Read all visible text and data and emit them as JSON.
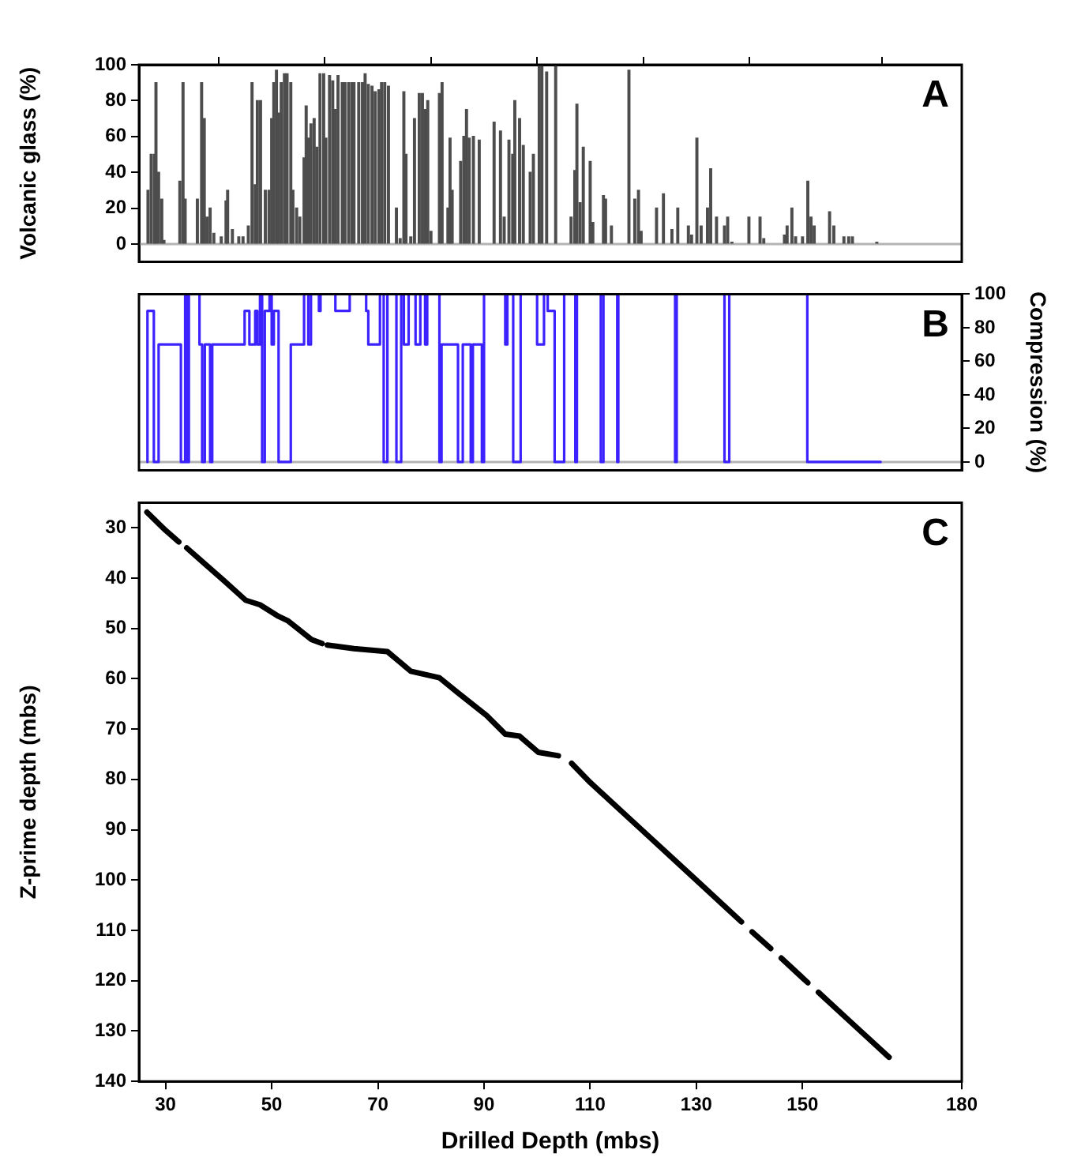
{
  "chart_data": [
    {
      "type": "bar",
      "ylabel": "Volcanic glass (%)",
      "xlim": [
        25,
        180
      ],
      "xticks": [
        30,
        50,
        70,
        90,
        110,
        130,
        150,
        180
      ],
      "ylim": [
        -10,
        100
      ],
      "yticks": [
        0,
        20,
        40,
        60,
        80,
        100
      ],
      "tick_labels": "y",
      "annotations": [
        "A"
      ],
      "ref_lines": [
        {
          "axis": "y",
          "value": 0,
          "color": "#b3b3b3"
        }
      ],
      "color": "#4d4d4d",
      "x": [
        26.7,
        27.3,
        27.9,
        28.2,
        28.7,
        29.3,
        29.7,
        32.7,
        33.3,
        33.7,
        36.0,
        36.8,
        37.3,
        37.8,
        38.4,
        39.1,
        40.5,
        41.4,
        41.7,
        42.6,
        43.8,
        44.6,
        45.6,
        46.3,
        46.9,
        47.3,
        47.9,
        48.8,
        49.5,
        50.0,
        50.4,
        50.9,
        51.3,
        51.8,
        52.4,
        52.9,
        53.6,
        54.0,
        54.7,
        55.3,
        56.1,
        56.5,
        56.9,
        57.4,
        58.0,
        58.5,
        59.1,
        59.8,
        60.2,
        60.9,
        61.5,
        62.0,
        62.5,
        63.3,
        63.8,
        64.5,
        65.1,
        65.5,
        66.4,
        67.1,
        67.6,
        68.2,
        68.9,
        69.5,
        70.2,
        70.7,
        71.3,
        72.0,
        73.5,
        74.2,
        74.9,
        75.3,
        76.2,
        76.9,
        77.8,
        78.4,
        78.9,
        79.4,
        80.0,
        81.6,
        82.1,
        83.2,
        83.6,
        84.0,
        85.6,
        86.2,
        86.7,
        87.2,
        88.0,
        89.1,
        91.9,
        93.1,
        93.8,
        94.7,
        95.4,
        95.8,
        96.7,
        97.4,
        98.7,
        99.3,
        100.4,
        100.9,
        101.8,
        103.5,
        106.4,
        107.1,
        107.5,
        108.1,
        108.7,
        110.0,
        110.5,
        112.5,
        112.9,
        114.0,
        117.3,
        118.4,
        119.1,
        119.6,
        122.5,
        123.8,
        125.4,
        126.5,
        128.5,
        129.1,
        130.1,
        130.9,
        132.1,
        132.7,
        133.8,
        135.3,
        135.9,
        136.7,
        139.9,
        142.0,
        142.7,
        146.6,
        147.1,
        148.0,
        148.7,
        150.0,
        151.0,
        151.6,
        152.2,
        155.1,
        155.9,
        157.8,
        158.7,
        159.4,
        164.0
      ],
      "values": [
        30,
        50,
        50,
        90,
        40,
        25,
        2,
        35,
        90,
        25,
        25,
        90,
        70,
        15,
        20,
        6,
        4,
        24,
        30,
        8,
        4,
        4,
        10,
        90,
        33,
        80,
        80,
        30,
        30,
        70,
        90,
        97,
        73,
        90,
        95,
        95,
        90,
        30,
        20,
        15,
        48,
        77,
        59,
        67,
        70,
        54,
        95,
        95,
        59,
        94,
        91,
        75,
        94,
        90,
        90,
        90,
        90,
        90,
        90,
        90,
        95,
        89,
        88,
        85,
        86,
        90,
        90,
        88,
        20,
        3,
        85,
        50,
        4,
        70,
        84,
        84,
        75,
        80,
        7,
        84,
        90,
        20,
        59,
        30,
        46,
        60,
        75,
        59,
        60,
        58,
        68,
        63,
        15,
        58,
        50,
        80,
        70,
        55,
        40,
        50,
        100,
        100,
        96,
        100,
        15,
        41,
        78,
        23,
        54,
        46,
        12,
        27,
        25,
        10,
        97,
        25,
        30,
        7,
        20,
        28,
        8,
        20,
        10,
        5,
        59,
        10,
        20,
        42,
        15,
        10,
        15,
        1,
        15,
        15,
        3,
        5,
        10,
        20,
        4,
        4,
        35,
        15,
        10,
        18,
        10,
        4,
        4,
        4,
        1
      ]
    },
    {
      "type": "step",
      "y2label": "Compression (%)",
      "xlim": [
        25,
        180
      ],
      "xticks": [
        30,
        50,
        70,
        90,
        110,
        130,
        150,
        180
      ],
      "y2lim": [
        -5,
        100
      ],
      "y2ticks": [
        0,
        20,
        40,
        60,
        80,
        100
      ],
      "tick_labels": "y",
      "annotations": [
        "B"
      ],
      "ref_lines": [
        {
          "axis": "y2",
          "value": 0,
          "color": "#b3b3b3"
        }
      ],
      "x": [
        26.6,
        27.8,
        28.7,
        32.9,
        33.7,
        34.0,
        34.4,
        36.4,
        36.9,
        37.4,
        38.4,
        38.8,
        44.9,
        45.8,
        46.9,
        47.3,
        47.8,
        48.2,
        48.7,
        49.6,
        50.0,
        50.4,
        51.3,
        53.6,
        56.1,
        56.9,
        57.4,
        58.9,
        59.2,
        62.0,
        64.7,
        67.8,
        68.2,
        70.4,
        71.1,
        71.8,
        73.5,
        74.4,
        74.9,
        75.8,
        77.1,
        78.0,
        78.9,
        79.3,
        81.6,
        82.0,
        85.1,
        86.0,
        87.5,
        87.9,
        89.6,
        90.0,
        94.0,
        94.4,
        95.5,
        96.9,
        100.0,
        101.3,
        102.0,
        103.3,
        105.1,
        107.2,
        107.5,
        112.0,
        112.5,
        115.1,
        115.3,
        126.0,
        126.3,
        135.3,
        136.2,
        150.9,
        151.8,
        164.7
      ],
      "series": [
        {
          "color": "#3b22ff",
          "axis": "y2",
          "values": [
            0,
            90,
            0,
            70,
            0,
            100,
            0,
            100,
            70,
            0,
            70,
            0,
            70,
            90,
            70,
            90,
            70,
            100,
            0,
            90,
            100,
            70,
            90,
            0,
            70,
            100,
            70,
            100,
            90,
            100,
            90,
            100,
            90,
            70,
            100,
            0,
            100,
            0,
            100,
            70,
            100,
            70,
            100,
            70,
            100,
            0,
            70,
            0,
            70,
            0,
            70,
            0,
            100,
            70,
            100,
            0,
            100,
            70,
            100,
            90,
            0,
            100,
            0,
            100,
            0,
            100,
            0,
            100,
            0,
            100,
            0,
            100,
            0,
            0
          ]
        }
      ]
    },
    {
      "type": "line",
      "xlabel": "Drilled Depth (mbs)",
      "ylabel": "Z-prime depth (mbs)",
      "xlim": [
        25,
        180
      ],
      "xticks": [
        30,
        50,
        70,
        90,
        110,
        130,
        150,
        180
      ],
      "ylim": [
        140,
        25
      ],
      "yticks": [
        30,
        40,
        50,
        60,
        70,
        80,
        90,
        100,
        110,
        120,
        130,
        140
      ],
      "marker": "none",
      "annotations": [
        "C"
      ],
      "color": "#000000",
      "x": [
        26.5,
        30,
        32.5,
        33.0,
        34.0,
        37.1,
        41,
        45.1,
        47.8,
        51.3,
        53.1,
        57.5,
        59.5,
        60.0,
        60.5,
        65.5,
        71.8,
        76.2,
        81.6,
        85.1,
        90.5,
        94.0,
        96.7,
        100.2,
        104,
        105,
        106.5,
        110,
        120,
        130,
        138.5,
        139.5,
        140.5,
        144,
        145,
        146,
        151,
        152,
        153,
        160,
        166.3
      ],
      "values": [
        26.9,
        30.5,
        32.8,
        null,
        34.0,
        36.9,
        40.5,
        44.4,
        45.3,
        47.6,
        48.5,
        52.2,
        53.0,
        null,
        53.3,
        54.0,
        54.6,
        58.5,
        59.8,
        62.8,
        67.3,
        71.0,
        71.4,
        74.6,
        75.3,
        null,
        76.8,
        80.6,
        90.3,
        100.0,
        108.3,
        null,
        110.3,
        113.6,
        null,
        115.5,
        120.4,
        null,
        122.3,
        129.1,
        135.2
      ]
    }
  ]
}
